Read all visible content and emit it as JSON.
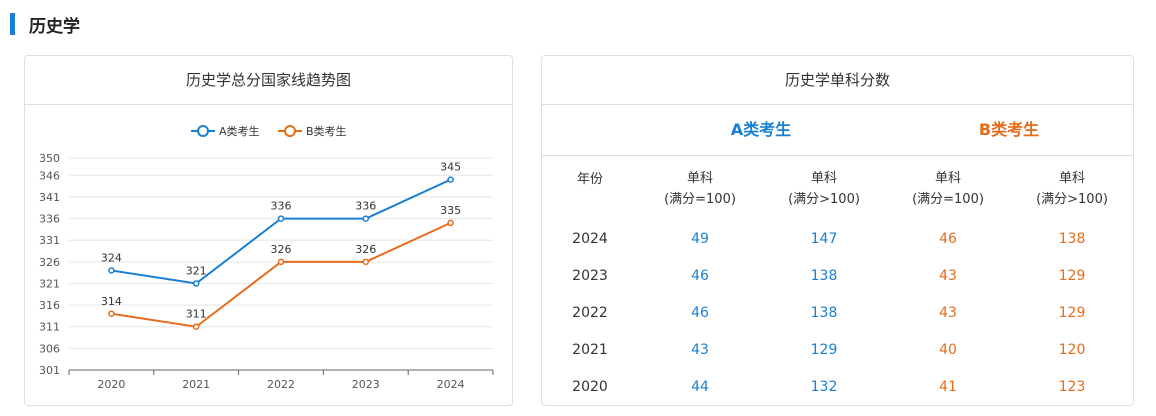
{
  "section": {
    "title": "历史学"
  },
  "chart_card": {
    "title": "历史学总分国家线趋势图"
  },
  "chart_data": {
    "type": "line",
    "title": "历史学总分国家线趋势图",
    "categories": [
      "2020",
      "2021",
      "2022",
      "2023",
      "2024"
    ],
    "series": [
      {
        "name": "A类考生",
        "color": "#1a7fd4",
        "values": [
          324,
          321,
          336,
          336,
          345
        ]
      },
      {
        "name": "B类考生",
        "color": "#e66c1b",
        "values": [
          314,
          311,
          326,
          326,
          335
        ]
      }
    ],
    "y_ticks": [
      301,
      306,
      311,
      316,
      321,
      326,
      331,
      336,
      341,
      346,
      350
    ],
    "ylim": [
      301,
      350
    ],
    "grid": true,
    "legend_position": "top-center",
    "xlabel": "",
    "ylabel": ""
  },
  "table_card": {
    "title": "历史学单科分数",
    "categories": {
      "a": "A类考生",
      "b": "B类考生"
    },
    "colors": {
      "a": "#1a7fd4",
      "b": "#e66c1b"
    },
    "headers": {
      "year": "年份",
      "col1": [
        "单科",
        "(满分=100)"
      ],
      "col2": [
        "单科",
        "(满分>100)"
      ],
      "col3": [
        "单科",
        "(满分=100)"
      ],
      "col4": [
        "单科",
        "(满分>100)"
      ]
    },
    "rows": [
      {
        "year": "2024",
        "a1": "49",
        "a2": "147",
        "b1": "46",
        "b2": "138"
      },
      {
        "year": "2023",
        "a1": "46",
        "a2": "138",
        "b1": "43",
        "b2": "129"
      },
      {
        "year": "2022",
        "a1": "46",
        "a2": "138",
        "b1": "43",
        "b2": "129"
      },
      {
        "year": "2021",
        "a1": "43",
        "a2": "129",
        "b1": "40",
        "b2": "120"
      },
      {
        "year": "2020",
        "a1": "44",
        "a2": "132",
        "b1": "41",
        "b2": "123"
      }
    ]
  }
}
